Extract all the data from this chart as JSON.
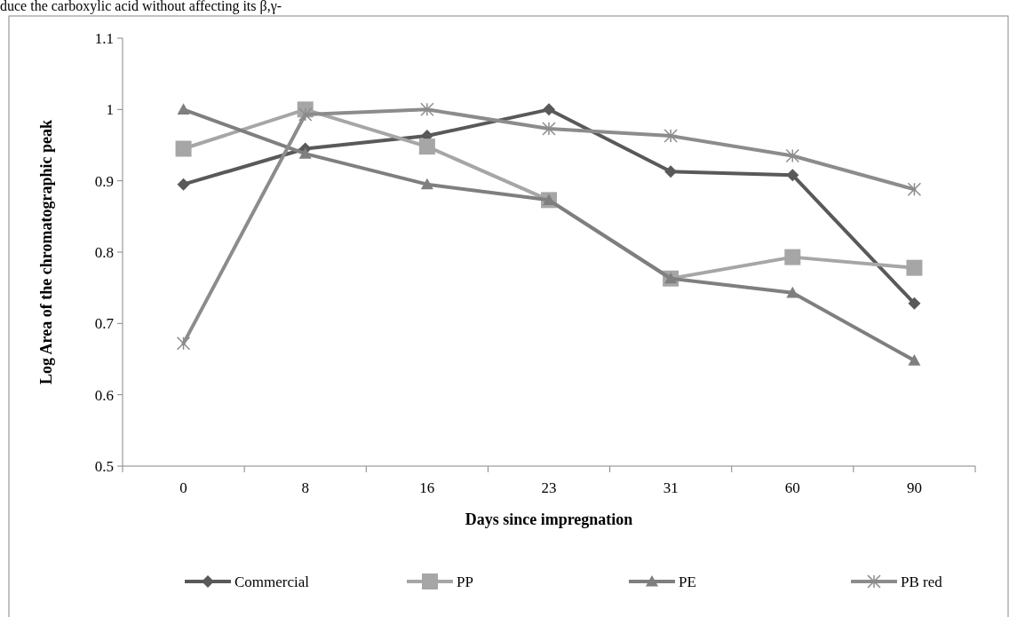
{
  "chart_data": {
    "type": "line",
    "xlabel": "Days since impregnation",
    "ylabel": "Log Area of the chromatographic  peak",
    "annotations": [
      "duce the carboxylic acid without affecting its β,γ-"
    ],
    "categories": [
      "0",
      "8",
      "16",
      "23",
      "31",
      "60",
      "90"
    ],
    "series": [
      {
        "name": "Commercial",
        "color": "#595959",
        "marker": "diamond",
        "values": [
          0.895,
          0.945,
          0.963,
          1.0,
          0.913,
          0.908,
          0.728
        ]
      },
      {
        "name": "PP",
        "color": "#a6a6a6",
        "marker": "square",
        "values": [
          0.945,
          1.0,
          0.948,
          0.873,
          0.763,
          0.793,
          0.778
        ]
      },
      {
        "name": "PE",
        "color": "#7f7f7f",
        "marker": "triangle",
        "values": [
          1.0,
          0.938,
          0.895,
          0.873,
          0.763,
          0.743,
          0.648
        ]
      },
      {
        "name": "PB red",
        "color": "#8c8c8c",
        "marker": "cross",
        "values": [
          0.672,
          0.993,
          1.0,
          0.973,
          0.963,
          0.935,
          0.888
        ]
      }
    ],
    "ylim": [
      0.5,
      1.1
    ],
    "yticks": [
      0.5,
      0.6,
      0.7,
      0.8,
      0.9,
      1,
      1.1
    ],
    "grid": false,
    "legend": "bottom",
    "line_style": "solid"
  }
}
